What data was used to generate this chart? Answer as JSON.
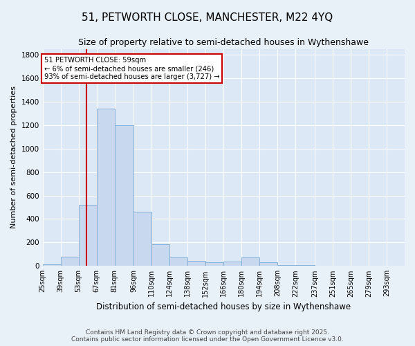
{
  "title": "51, PETWORTH CLOSE, MANCHESTER, M22 4YQ",
  "subtitle": "Size of property relative to semi-detached houses in Wythenshawe",
  "xlabel": "Distribution of semi-detached houses by size in Wythenshawe",
  "ylabel": "Number of semi-detached properties",
  "footer_line1": "Contains HM Land Registry data © Crown copyright and database right 2025.",
  "footer_line2": "Contains public sector information licensed under the Open Government Licence v3.0.",
  "annotation_title": "51 PETWORTH CLOSE: 59sqm",
  "annotation_line2": "← 6% of semi-detached houses are smaller (246)",
  "annotation_line3": "93% of semi-detached houses are larger (3,727) →",
  "bar_edges": [
    25,
    39,
    53,
    67,
    81,
    96,
    110,
    124,
    138,
    152,
    166,
    180,
    194,
    208,
    222,
    237,
    251,
    265,
    279,
    293,
    307
  ],
  "bar_heights": [
    15,
    80,
    520,
    1340,
    1200,
    460,
    185,
    75,
    45,
    30,
    40,
    75,
    30,
    10,
    5,
    2,
    2,
    1,
    1,
    1
  ],
  "bar_color": "#c8d8ee",
  "bar_edge_color": "#7aaad0",
  "vline_x": 59,
  "vline_color": "#cc0000",
  "annotation_box_color": "#cc0000",
  "plot_bg_color": "#dce8f5",
  "fig_bg_color": "#e8f0f8",
  "grid_color": "#ffffff",
  "ylim": [
    0,
    1850
  ],
  "yticks": [
    0,
    200,
    400,
    600,
    800,
    1000,
    1200,
    1400,
    1600,
    1800
  ],
  "title_fontsize": 11,
  "subtitle_fontsize": 9,
  "tick_label_fontsize": 7,
  "ylabel_fontsize": 8,
  "xlabel_fontsize": 8.5,
  "footer_fontsize": 6.5
}
